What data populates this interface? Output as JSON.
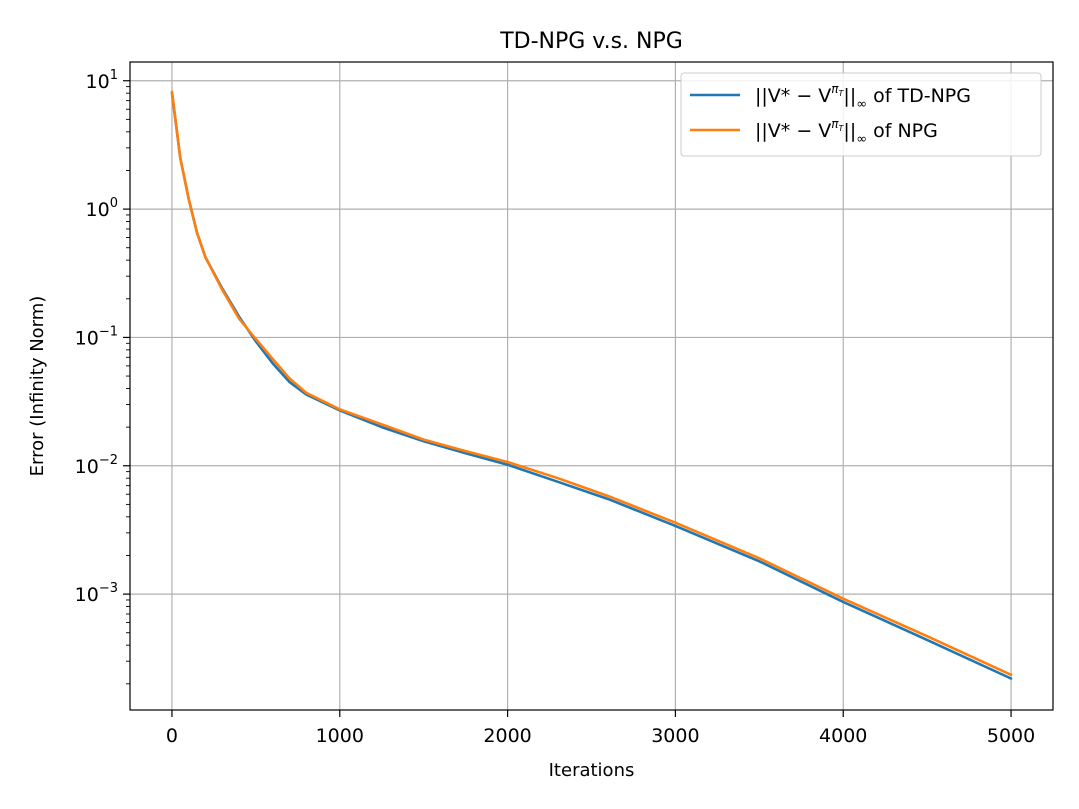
{
  "chart_data": {
    "type": "line",
    "title": "TD-NPG v.s. NPG",
    "xlabel": "Iterations",
    "ylabel": "Error (Infinity Norm)",
    "xlim": [
      -250,
      5250
    ],
    "ylim": [
      0.000125,
      14
    ],
    "y_scale": "log",
    "grid": true,
    "legend_position": "top-right",
    "x_ticks": [
      {
        "value": 0,
        "label": "0"
      },
      {
        "value": 1000,
        "label": "1000"
      },
      {
        "value": 2000,
        "label": "2000"
      },
      {
        "value": 3000,
        "label": "3000"
      },
      {
        "value": 4000,
        "label": "4000"
      },
      {
        "value": 5000,
        "label": "5000"
      }
    ],
    "y_ticks": [
      {
        "value": 10,
        "base": "10",
        "exp": "1"
      },
      {
        "value": 1,
        "base": "10",
        "exp": "0"
      },
      {
        "value": 0.1,
        "base": "10",
        "exp": "−1"
      },
      {
        "value": 0.01,
        "base": "10",
        "exp": "−2"
      },
      {
        "value": 0.001,
        "base": "10",
        "exp": "−3"
      }
    ],
    "x": [
      0,
      50,
      100,
      150,
      200,
      300,
      400,
      500,
      600,
      700,
      800,
      1000,
      1250,
      1500,
      1750,
      2000,
      2300,
      2600,
      3000,
      3500,
      4000,
      4500,
      5000
    ],
    "series": [
      {
        "name": "||V* − V^{π_T}||∞ of TD-NPG",
        "legend_label": {
          "prefix": "||V* − V",
          "sup": "π",
          "subsup": "T",
          "suffix": "||",
          "sub": "∞",
          "tail": " of TD-NPG"
        },
        "color": "#1f77b4",
        "values": [
          8.0,
          2.5,
          1.2,
          0.65,
          0.42,
          0.24,
          0.145,
          0.093,
          0.063,
          0.045,
          0.036,
          0.027,
          0.02,
          0.0155,
          0.0125,
          0.0102,
          0.0075,
          0.0055,
          0.0034,
          0.0018,
          0.00087,
          0.00044,
          0.00022
        ]
      },
      {
        "name": "||V* − V^{π_T}||∞ of NPG",
        "legend_label": {
          "prefix": "||V* − V",
          "sup": "π",
          "subsup": "T",
          "suffix": "||",
          "sub": "∞",
          "tail": " of NPG"
        },
        "color": "#ff7f0e",
        "values": [
          8.2,
          2.5,
          1.2,
          0.65,
          0.42,
          0.235,
          0.14,
          0.097,
          0.068,
          0.048,
          0.037,
          0.0275,
          0.021,
          0.016,
          0.013,
          0.0107,
          0.008,
          0.0058,
          0.0036,
          0.0019,
          0.00092,
          0.00047,
          0.000235
        ]
      }
    ]
  }
}
